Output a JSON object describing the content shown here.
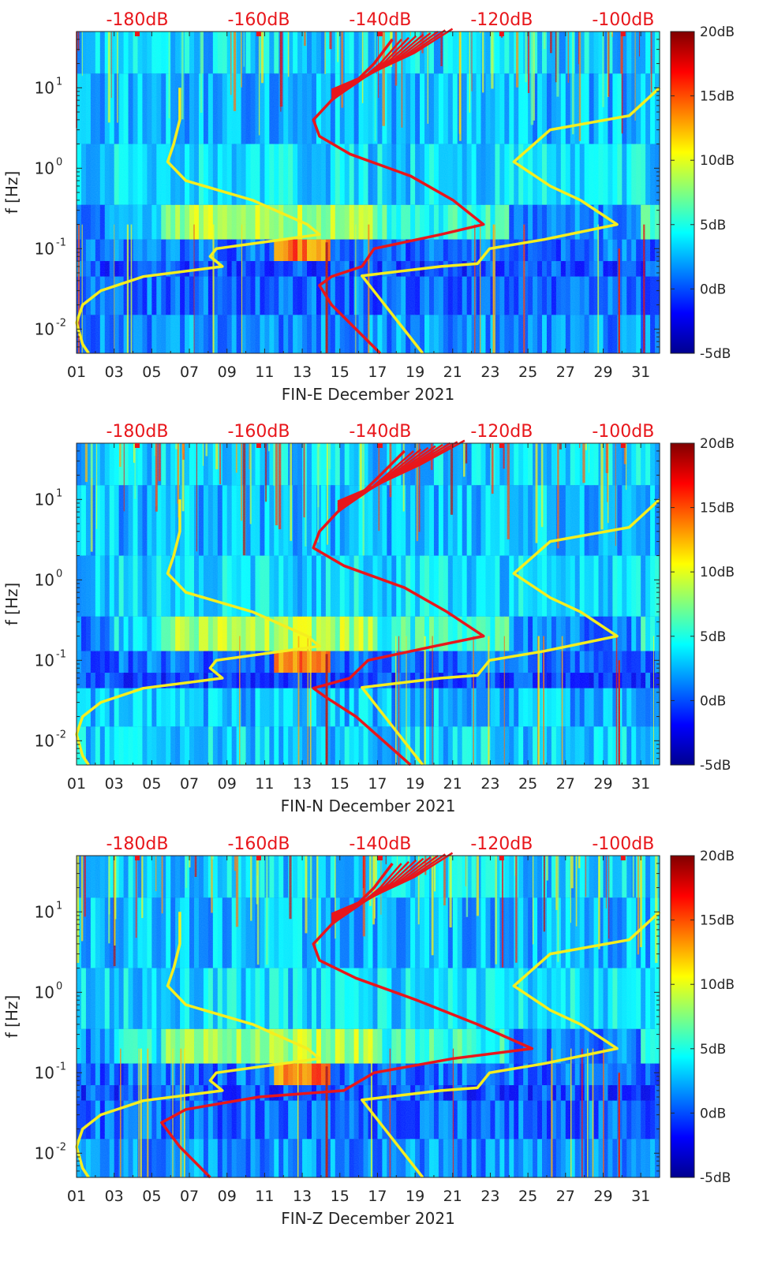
{
  "chart_data": [
    {
      "type": "heatmap",
      "station": "FIN-E",
      "xlabel": "FIN-E December 2021",
      "ylabel": "f [Hz]",
      "x_ticks": [
        "01",
        "03",
        "05",
        "07",
        "09",
        "11",
        "13",
        "15",
        "17",
        "19",
        "21",
        "23",
        "25",
        "27",
        "29",
        "31"
      ],
      "x_range_days": [
        1,
        32
      ],
      "y_scale": "log",
      "y_range_hz": [
        0.005,
        50
      ],
      "y_ticks": [
        {
          "exp": "-2",
          "value": 0.01
        },
        {
          "exp": "-1",
          "value": 0.1
        },
        {
          "exp": "0",
          "value": 1
        },
        {
          "exp": "1",
          "value": 10
        }
      ],
      "top_axis_labels": [
        "-180dB",
        "-160dB",
        "-140dB",
        "-120dB",
        "-100dB"
      ],
      "top_axis_range_db": [
        -190,
        -94
      ],
      "colorbar": {
        "labels": [
          "20dB",
          "15dB",
          "10dB",
          "5dB",
          "0dB",
          "-5dB"
        ],
        "range_db": [
          -5,
          20
        ]
      },
      "noise_model_low_db": [
        [
          0.005,
          -188
        ],
        [
          0.0065,
          -189
        ],
        [
          0.012,
          -190
        ],
        [
          0.02,
          -189
        ],
        [
          0.03,
          -186
        ],
        [
          0.045,
          -179
        ],
        [
          0.06,
          -166
        ],
        [
          0.08,
          -168
        ],
        [
          0.1,
          -167
        ],
        [
          0.15,
          -150
        ],
        [
          0.2,
          -152
        ],
        [
          0.4,
          -161
        ],
        [
          0.7,
          -172
        ],
        [
          1.2,
          -175
        ],
        [
          2,
          -174
        ],
        [
          4,
          -173
        ],
        [
          10,
          -173
        ]
      ],
      "noise_model_high_db": [
        [
          0.005,
          -133
        ],
        [
          0.046,
          -143
        ],
        [
          0.06,
          -130
        ],
        [
          0.065,
          -124
        ],
        [
          0.1,
          -122
        ],
        [
          0.13,
          -113
        ],
        [
          0.2,
          -101
        ],
        [
          0.4,
          -107
        ],
        [
          0.6,
          -112
        ],
        [
          1.2,
          -118
        ],
        [
          3,
          -112
        ],
        [
          4.5,
          -99
        ],
        [
          10,
          -94
        ]
      ],
      "median_curve_db": [
        [
          0.005,
          -140
        ],
        [
          0.02,
          -148
        ],
        [
          0.035,
          -150
        ],
        [
          0.045,
          -148
        ],
        [
          0.06,
          -143
        ],
        [
          0.1,
          -141
        ],
        [
          0.15,
          -130
        ],
        [
          0.2,
          -123
        ],
        [
          0.4,
          -128
        ],
        [
          0.8,
          -135
        ],
        [
          1.5,
          -145
        ],
        [
          2.5,
          -150
        ],
        [
          4,
          -151
        ],
        [
          7,
          -148
        ],
        [
          12,
          -144
        ],
        [
          20,
          -141
        ],
        [
          40,
          -138
        ]
      ]
    },
    {
      "type": "heatmap",
      "station": "FIN-N",
      "xlabel": "FIN-N December 2021",
      "ylabel": "f [Hz]",
      "x_ticks": [
        "01",
        "03",
        "05",
        "07",
        "09",
        "11",
        "13",
        "15",
        "17",
        "19",
        "21",
        "23",
        "25",
        "27",
        "29",
        "31"
      ],
      "x_range_days": [
        1,
        32
      ],
      "y_scale": "log",
      "y_range_hz": [
        0.005,
        50
      ],
      "y_ticks": [
        {
          "exp": "-2",
          "value": 0.01
        },
        {
          "exp": "-1",
          "value": 0.1
        },
        {
          "exp": "0",
          "value": 1
        },
        {
          "exp": "1",
          "value": 10
        }
      ],
      "top_axis_labels": [
        "-180dB",
        "-160dB",
        "-140dB",
        "-120dB",
        "-100dB"
      ],
      "top_axis_range_db": [
        -190,
        -94
      ],
      "colorbar": {
        "labels": [
          "20dB",
          "15dB",
          "10dB",
          "5dB",
          "0dB",
          "-5dB"
        ],
        "range_db": [
          -5,
          20
        ]
      },
      "noise_model_low_db": [
        [
          0.005,
          -188
        ],
        [
          0.0065,
          -189
        ],
        [
          0.012,
          -190
        ],
        [
          0.02,
          -189
        ],
        [
          0.03,
          -186
        ],
        [
          0.045,
          -179
        ],
        [
          0.06,
          -166
        ],
        [
          0.08,
          -168
        ],
        [
          0.1,
          -167
        ],
        [
          0.15,
          -150
        ],
        [
          0.2,
          -152
        ],
        [
          0.4,
          -161
        ],
        [
          0.7,
          -172
        ],
        [
          1.2,
          -175
        ],
        [
          2,
          -174
        ],
        [
          4,
          -173
        ],
        [
          10,
          -173
        ]
      ],
      "noise_model_high_db": [
        [
          0.005,
          -133
        ],
        [
          0.046,
          -143
        ],
        [
          0.06,
          -130
        ],
        [
          0.065,
          -124
        ],
        [
          0.1,
          -122
        ],
        [
          0.13,
          -113
        ],
        [
          0.2,
          -101
        ],
        [
          0.4,
          -107
        ],
        [
          0.6,
          -112
        ],
        [
          1.2,
          -118
        ],
        [
          3,
          -112
        ],
        [
          4.5,
          -99
        ],
        [
          10,
          -94
        ]
      ],
      "median_curve_db": [
        [
          0.005,
          -135
        ],
        [
          0.02,
          -144
        ],
        [
          0.035,
          -149
        ],
        [
          0.045,
          -151
        ],
        [
          0.06,
          -145
        ],
        [
          0.1,
          -142
        ],
        [
          0.15,
          -131
        ],
        [
          0.2,
          -123
        ],
        [
          0.4,
          -129
        ],
        [
          0.8,
          -136
        ],
        [
          1.5,
          -146
        ],
        [
          2.5,
          -151
        ],
        [
          4,
          -150
        ],
        [
          7,
          -147
        ],
        [
          12,
          -143
        ],
        [
          20,
          -140
        ],
        [
          40,
          -136
        ]
      ]
    },
    {
      "type": "heatmap",
      "station": "FIN-Z",
      "xlabel": "FIN-Z December 2021",
      "ylabel": "f [Hz]",
      "x_ticks": [
        "01",
        "03",
        "05",
        "07",
        "09",
        "11",
        "13",
        "15",
        "17",
        "19",
        "21",
        "23",
        "25",
        "27",
        "29",
        "31"
      ],
      "x_range_days": [
        1,
        32
      ],
      "y_scale": "log",
      "y_range_hz": [
        0.005,
        50
      ],
      "y_ticks": [
        {
          "exp": "-2",
          "value": 0.01
        },
        {
          "exp": "-1",
          "value": 0.1
        },
        {
          "exp": "0",
          "value": 1
        },
        {
          "exp": "1",
          "value": 10
        }
      ],
      "top_axis_labels": [
        "-180dB",
        "-160dB",
        "-140dB",
        "-120dB",
        "-100dB"
      ],
      "top_axis_range_db": [
        -190,
        -94
      ],
      "colorbar": {
        "labels": [
          "20dB",
          "15dB",
          "10dB",
          "5dB",
          "0dB",
          "-5dB"
        ],
        "range_db": [
          -5,
          20
        ]
      },
      "noise_model_low_db": [
        [
          0.005,
          -188
        ],
        [
          0.0065,
          -189
        ],
        [
          0.012,
          -190
        ],
        [
          0.02,
          -189
        ],
        [
          0.03,
          -186
        ],
        [
          0.045,
          -179
        ],
        [
          0.06,
          -166
        ],
        [
          0.08,
          -168
        ],
        [
          0.1,
          -167
        ],
        [
          0.15,
          -150
        ],
        [
          0.2,
          -152
        ],
        [
          0.4,
          -161
        ],
        [
          0.7,
          -172
        ],
        [
          1.2,
          -175
        ],
        [
          2,
          -174
        ],
        [
          4,
          -173
        ],
        [
          10,
          -173
        ]
      ],
      "noise_model_high_db": [
        [
          0.005,
          -133
        ],
        [
          0.046,
          -143
        ],
        [
          0.06,
          -130
        ],
        [
          0.065,
          -124
        ],
        [
          0.1,
          -122
        ],
        [
          0.13,
          -113
        ],
        [
          0.2,
          -101
        ],
        [
          0.4,
          -107
        ],
        [
          0.6,
          -112
        ],
        [
          1.2,
          -118
        ],
        [
          3,
          -112
        ],
        [
          4.5,
          -99
        ],
        [
          10,
          -94
        ]
      ],
      "median_curve_db": [
        [
          0.005,
          -168
        ],
        [
          0.012,
          -173
        ],
        [
          0.024,
          -176
        ],
        [
          0.035,
          -172
        ],
        [
          0.05,
          -160
        ],
        [
          0.06,
          -146
        ],
        [
          0.1,
          -141
        ],
        [
          0.15,
          -128
        ],
        [
          0.2,
          -115
        ],
        [
          0.4,
          -124
        ],
        [
          0.8,
          -134
        ],
        [
          1.5,
          -144
        ],
        [
          2.5,
          -150
        ],
        [
          4,
          -151
        ],
        [
          7,
          -148
        ],
        [
          12,
          -144
        ],
        [
          20,
          -141
        ],
        [
          40,
          -138
        ]
      ]
    }
  ],
  "colors": {
    "median_curve": "#e8161b",
    "noise_models": "#f5ee1f",
    "top_labels": "#e8161b",
    "axis": "#262626"
  }
}
